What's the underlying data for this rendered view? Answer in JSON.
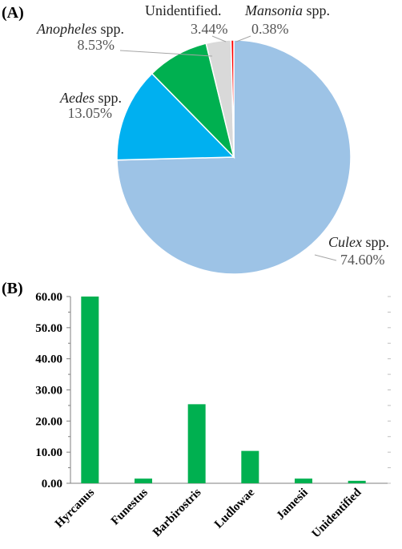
{
  "chart_data": [
    {
      "panel_label": "(A)",
      "type": "pie",
      "slices": [
        {
          "genus": "Culex",
          "suffix": " spp.",
          "value": 74.6,
          "percent_label": "74.60%",
          "color": "#9DC3E6"
        },
        {
          "genus": "Aedes",
          "suffix": " spp.",
          "value": 13.05,
          "percent_label": "13.05%",
          "color": "#00B0F0"
        },
        {
          "genus": "Anopheles",
          "suffix": " spp.",
          "value": 8.53,
          "percent_label": "8.53%",
          "color": "#00B050"
        },
        {
          "genus": "",
          "suffix": "Unidentified.",
          "value": 3.44,
          "percent_label": "3.44%",
          "color": "#D9D9D9"
        },
        {
          "genus": "Mansonia",
          "suffix": " spp.",
          "value": 0.38,
          "percent_label": "0.38%",
          "color": "#FF0000"
        }
      ]
    },
    {
      "panel_label": "(B)",
      "type": "bar",
      "categories": [
        "Hyrcanus",
        "Funestus",
        "Barbirostris",
        "Ludlowae",
        "Jamesii",
        "Unidentified"
      ],
      "values": [
        60.0,
        1.5,
        25.4,
        10.4,
        1.5,
        0.8
      ],
      "ylim": [
        0,
        60
      ],
      "yticks": [
        "0.00",
        "10.00",
        "20.00",
        "30.00",
        "40.00",
        "50.00",
        "60.00"
      ],
      "bar_color": "#00B050",
      "grid": false
    }
  ]
}
